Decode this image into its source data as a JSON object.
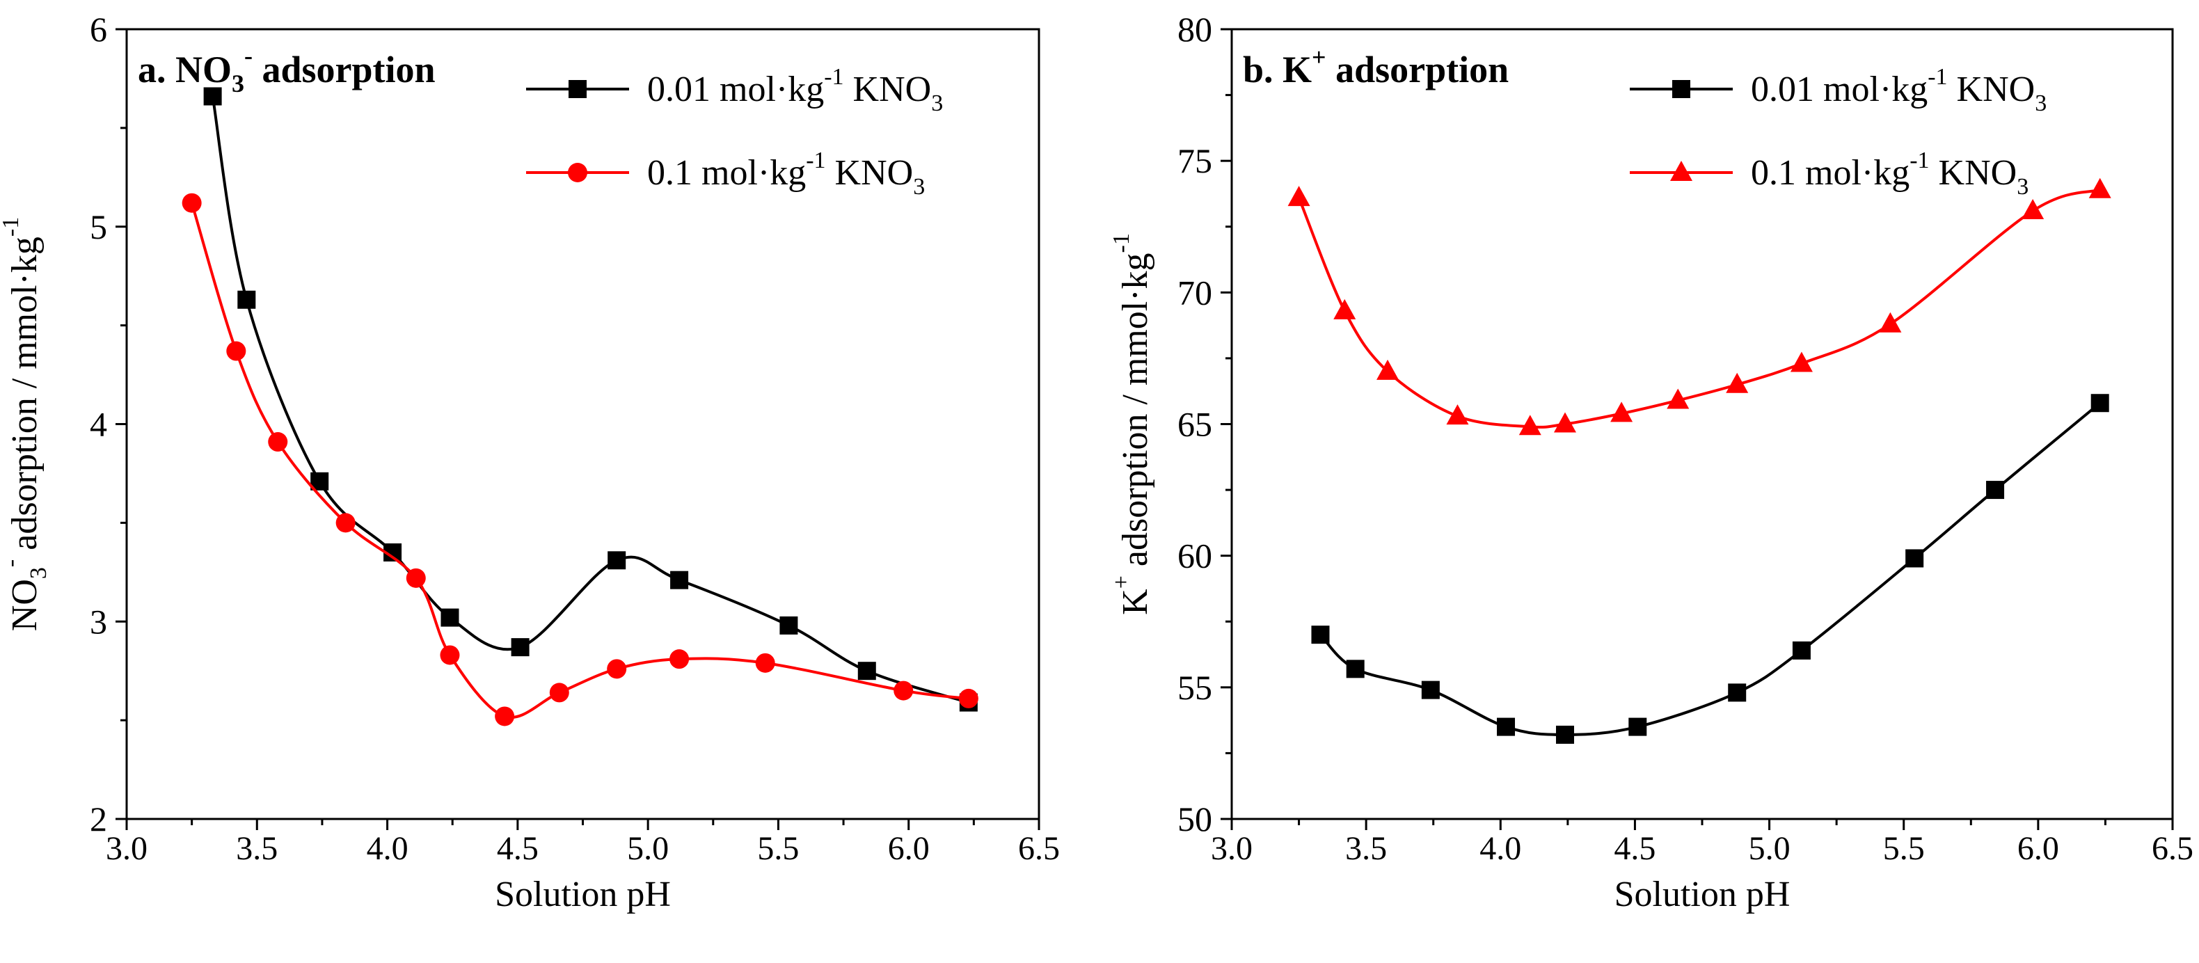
{
  "chart_data": [
    {
      "type": "line",
      "panel_title": "a. NO₃⁻ adsorption",
      "title_parts": {
        "a": "a. NO",
        "sub": "3",
        "sup": "-",
        "b": " adsorption"
      },
      "xlabel": "Solution pH",
      "ylabel_parts": {
        "a": "NO",
        "sub": "3",
        "sup": "-",
        "b": " adsorption / mmol·kg",
        "sup2": "-1"
      },
      "xlim": [
        3.0,
        6.5
      ],
      "ylim": [
        2,
        6
      ],
      "x_ticks": [
        3.0,
        3.5,
        4.0,
        4.5,
        5.0,
        5.5,
        6.0,
        6.5
      ],
      "x_tick_labels": [
        "3.0",
        "3.5",
        "4.0",
        "4.5",
        "5.0",
        "5.5",
        "6.0",
        "6.5"
      ],
      "y_ticks": [
        2,
        3,
        4,
        5,
        6
      ],
      "y_tick_labels": [
        "2",
        "3",
        "4",
        "5",
        "6"
      ],
      "legend_position": "top-right",
      "series": [
        {
          "name": "0.01 mol·kg⁻¹ KNO₃",
          "legend_parts": {
            "a": "0.01 mol·kg",
            "sup": "-1",
            "b": " KNO",
            "sub": "3"
          },
          "color": "#000000",
          "marker": "square",
          "x": [
            3.33,
            3.46,
            3.74,
            4.02,
            4.24,
            4.51,
            4.88,
            5.12,
            5.54,
            5.84,
            6.23
          ],
          "y": [
            5.66,
            4.63,
            3.71,
            3.35,
            3.02,
            2.87,
            3.31,
            3.21,
            2.98,
            2.75,
            2.59
          ]
        },
        {
          "name": "0.1 mol·kg⁻¹ KNO₃",
          "legend_parts": {
            "a": "0.1 mol·kg",
            "sup": "-1",
            "b": " KNO",
            "sub": "3"
          },
          "color": "#ff0000",
          "marker": "circle",
          "x": [
            3.25,
            3.42,
            3.58,
            3.84,
            4.11,
            4.24,
            4.45,
            4.66,
            4.88,
            5.12,
            5.45,
            5.98,
            6.23
          ],
          "y": [
            5.12,
            4.37,
            3.91,
            3.5,
            3.22,
            2.83,
            2.52,
            2.64,
            2.76,
            2.81,
            2.79,
            2.65,
            2.61
          ]
        }
      ]
    },
    {
      "type": "line",
      "panel_title": "b. K⁺ adsorption",
      "title_parts": {
        "a": "b. K",
        "sub": "",
        "sup": "+",
        "b": " adsorption"
      },
      "xlabel": "Solution pH",
      "ylabel_parts": {
        "a": "K",
        "sub": "",
        "sup": "+",
        "b": " adsorption / mmol·kg",
        "sup2": "-1"
      },
      "xlim": [
        3.0,
        6.5
      ],
      "ylim": [
        50,
        80
      ],
      "x_ticks": [
        3.0,
        3.5,
        4.0,
        4.5,
        5.0,
        5.5,
        6.0,
        6.5
      ],
      "x_tick_labels": [
        "3.0",
        "3.5",
        "4.0",
        "4.5",
        "5.0",
        "5.5",
        "6.0",
        "6.5"
      ],
      "y_ticks": [
        50,
        55,
        60,
        65,
        70,
        75,
        80
      ],
      "y_tick_labels": [
        "50",
        "55",
        "60",
        "65",
        "70",
        "75",
        "80"
      ],
      "legend_position": "top-right",
      "series": [
        {
          "name": "0.01 mol·kg⁻¹ KNO₃",
          "legend_parts": {
            "a": "0.01 mol·kg",
            "sup": "-1",
            "b": " KNO",
            "sub": "3"
          },
          "color": "#000000",
          "marker": "square",
          "x": [
            3.33,
            3.46,
            3.74,
            4.02,
            4.24,
            4.51,
            4.88,
            5.12,
            5.54,
            5.84,
            6.23
          ],
          "y": [
            57.0,
            55.7,
            54.9,
            53.5,
            53.2,
            53.5,
            54.8,
            56.4,
            59.9,
            62.5,
            65.8
          ]
        },
        {
          "name": "0.1 mol·kg⁻¹ KNO₃",
          "legend_parts": {
            "a": "0.1 mol·kg",
            "sup": "-1",
            "b": " KNO",
            "sub": "3"
          },
          "color": "#ff0000",
          "marker": "triangle",
          "x": [
            3.25,
            3.42,
            3.58,
            3.84,
            4.11,
            4.24,
            4.45,
            4.66,
            4.88,
            5.12,
            5.45,
            5.98,
            6.23
          ],
          "y": [
            73.6,
            69.3,
            67.0,
            65.3,
            64.9,
            65.0,
            65.4,
            65.9,
            66.5,
            67.3,
            68.8,
            73.1,
            73.9
          ]
        }
      ]
    }
  ]
}
